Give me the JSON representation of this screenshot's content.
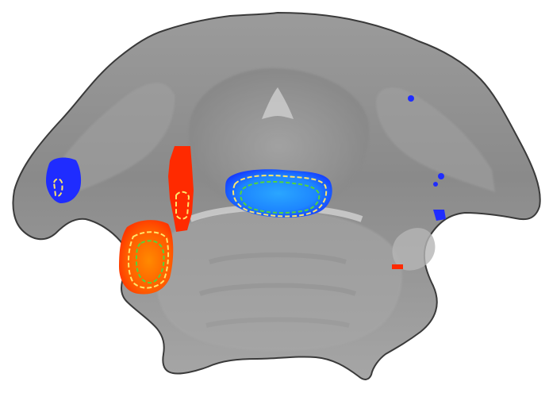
{
  "figure": {
    "colors": {
      "background": "#ffffff",
      "tissue_dark": "#6e6e6e",
      "tissue_mid": "#8e8e8e",
      "tissue_light": "#b9b9b9",
      "tissue_highlight": "#dcdcdc",
      "activation_red": "#ff2a00",
      "activation_orange": "#ff7a00",
      "deactivation_blue": "#1530ff",
      "deactivation_light_blue": "#1a9bff",
      "contour_yellow": "#ffe66a",
      "contour_green": "#53d43a"
    },
    "activations": [
      {
        "type": "positive",
        "label": "red-orange"
      },
      {
        "type": "negative",
        "label": "blue"
      }
    ]
  }
}
